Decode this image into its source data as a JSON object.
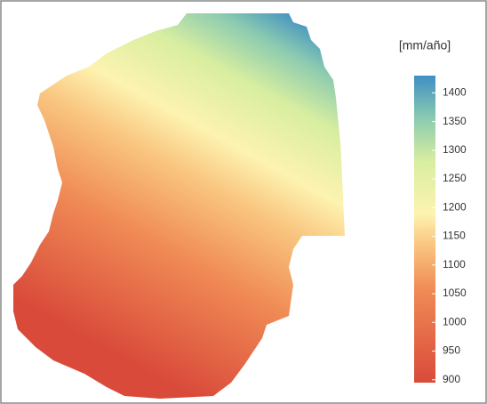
{
  "legend": {
    "title": "[mm/año]",
    "lim": [
      895,
      1430
    ],
    "ticks": [
      900,
      950,
      1000,
      1050,
      1100,
      1150,
      1200,
      1250,
      1300,
      1350,
      1400
    ]
  }
}
